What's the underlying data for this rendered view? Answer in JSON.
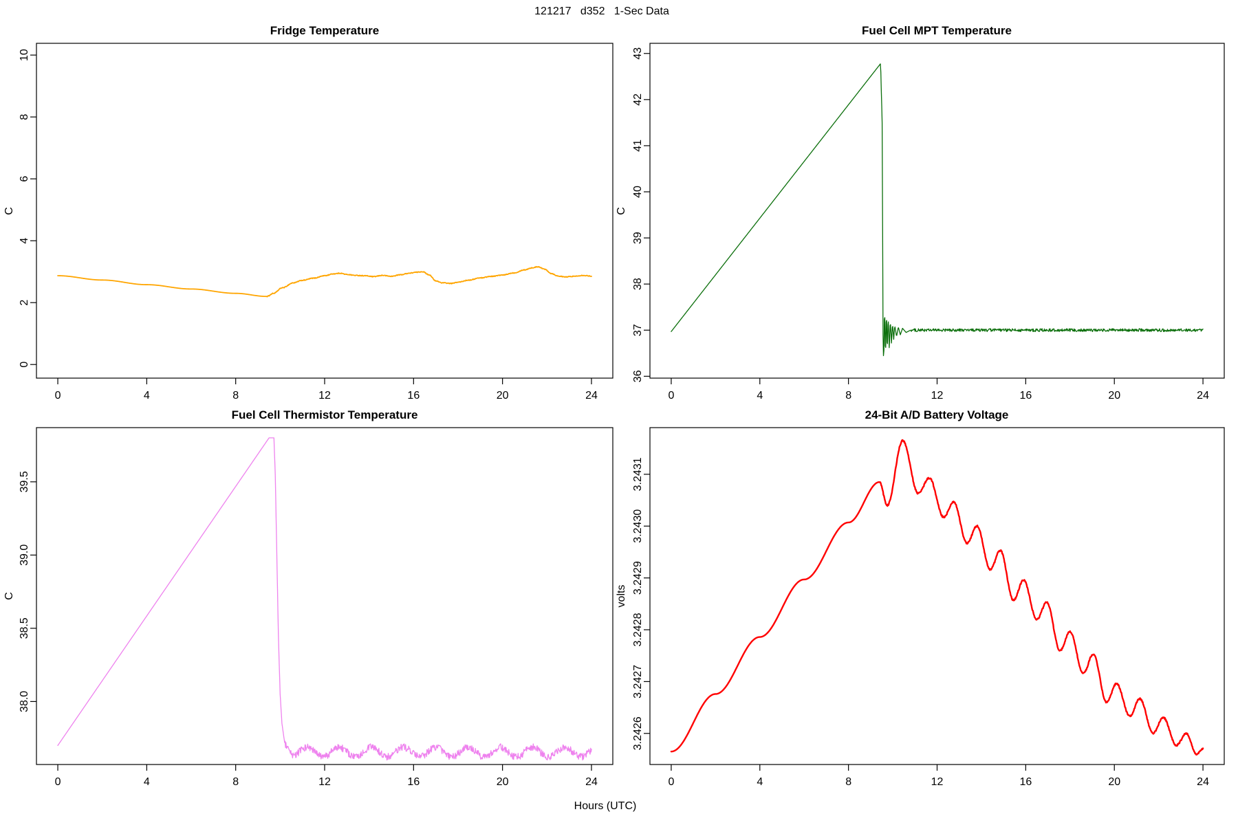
{
  "header": {
    "title": "121217   d352   1-Sec Data"
  },
  "xlabel": "Hours (UTC)",
  "colors": {
    "axis": "#000000",
    "background": "#ffffff"
  },
  "chart_data": [
    {
      "id": "fridge",
      "type": "line",
      "title": "Fridge Temperature",
      "ylabel": "C",
      "color": "#FFA500",
      "line_width": 1.8,
      "interp": "cosine",
      "sample_step": 0.02,
      "xlim": [
        -0.96,
        24.96
      ],
      "ylim": [
        -0.44,
        10.38
      ],
      "xtick_values": [
        0,
        4,
        8,
        12,
        16,
        20,
        24
      ],
      "xtick_labels": [
        "0",
        "4",
        "8",
        "12",
        "16",
        "20",
        "24"
      ],
      "ytick_values": [
        0,
        2,
        4,
        6,
        8,
        10
      ],
      "ytick_labels": [
        "0",
        "2",
        "4",
        "6",
        "8",
        "10"
      ],
      "anchors": [
        [
          0,
          2.87
        ],
        [
          2,
          2.73
        ],
        [
          4,
          2.58
        ],
        [
          6,
          2.44
        ],
        [
          8,
          2.3
        ],
        [
          9.4,
          2.2
        ],
        [
          9.7,
          2.3
        ],
        [
          10.1,
          2.48
        ],
        [
          10.6,
          2.64
        ],
        [
          11,
          2.72
        ],
        [
          11.5,
          2.79
        ],
        [
          12,
          2.87
        ],
        [
          12.4,
          2.93
        ],
        [
          12.7,
          2.95
        ],
        [
          13,
          2.91
        ],
        [
          13.4,
          2.88
        ],
        [
          13.8,
          2.87
        ],
        [
          14.2,
          2.84
        ],
        [
          14.6,
          2.88
        ],
        [
          15,
          2.85
        ],
        [
          15.4,
          2.9
        ],
        [
          15.8,
          2.95
        ],
        [
          16.1,
          2.98
        ],
        [
          16.4,
          3.0
        ],
        [
          16.7,
          2.9
        ],
        [
          17,
          2.7
        ],
        [
          17.3,
          2.64
        ],
        [
          17.7,
          2.62
        ],
        [
          18,
          2.66
        ],
        [
          18.5,
          2.73
        ],
        [
          19,
          2.8
        ],
        [
          19.5,
          2.85
        ],
        [
          20,
          2.89
        ],
        [
          20.5,
          2.96
        ],
        [
          21,
          3.06
        ],
        [
          21.3,
          3.12
        ],
        [
          21.6,
          3.16
        ],
        [
          21.9,
          3.08
        ],
        [
          22.2,
          2.94
        ],
        [
          22.5,
          2.86
        ],
        [
          22.8,
          2.83
        ],
        [
          23.2,
          2.85
        ],
        [
          23.6,
          2.88
        ],
        [
          24,
          2.86
        ]
      ],
      "noise": {
        "from": 9.4,
        "to": 24,
        "amp": 0.012
      }
    },
    {
      "id": "mpt",
      "type": "line",
      "title": "Fuel Cell MPT Temperature",
      "ylabel": "C",
      "color": "#0A6E0A",
      "line_width": 1.3,
      "interp": "linear",
      "sample_step": 0.02,
      "xlim": [
        -0.96,
        24.96
      ],
      "ylim": [
        35.96,
        43.22
      ],
      "xtick_values": [
        0,
        4,
        8,
        12,
        16,
        20,
        24
      ],
      "xtick_labels": [
        "0",
        "4",
        "8",
        "12",
        "16",
        "20",
        "24"
      ],
      "ytick_values": [
        36,
        37,
        38,
        39,
        40,
        41,
        42,
        43
      ],
      "ytick_labels": [
        "36",
        "37",
        "38",
        "39",
        "40",
        "41",
        "42",
        "43"
      ],
      "anchors": [
        [
          0,
          36.97
        ],
        [
          9.45,
          42.78
        ],
        [
          9.52,
          41.5
        ],
        [
          9.56,
          36.9
        ],
        [
          9.59,
          36.22
        ],
        [
          9.63,
          37.58
        ],
        [
          9.67,
          36.35
        ],
        [
          9.71,
          37.45
        ],
        [
          9.75,
          36.5
        ],
        [
          9.79,
          37.32
        ],
        [
          9.84,
          36.62
        ],
        [
          9.89,
          37.22
        ],
        [
          9.94,
          36.72
        ],
        [
          9.99,
          37.15
        ],
        [
          10.04,
          36.8
        ],
        [
          10.09,
          37.1
        ],
        [
          10.17,
          36.86
        ],
        [
          10.25,
          37.07
        ],
        [
          10.34,
          36.9
        ],
        [
          10.44,
          37.04
        ],
        [
          10.6,
          36.95
        ],
        [
          10.8,
          37.0
        ]
      ],
      "noise": {
        "from": 10.8,
        "to": 24,
        "amp": 0.032
      }
    },
    {
      "id": "thermistor",
      "type": "line",
      "title": "Fuel Cell Thermistor Temperature",
      "ylabel": "C",
      "color": "#EE82EE",
      "line_width": 1.3,
      "interp": "linear",
      "sample_step": 0.02,
      "xlim": [
        -0.96,
        24.96
      ],
      "ylim": [
        37.57,
        39.87
      ],
      "xtick_values": [
        0,
        4,
        8,
        12,
        16,
        20,
        24
      ],
      "xtick_labels": [
        "0",
        "4",
        "8",
        "12",
        "16",
        "20",
        "24"
      ],
      "ytick_values": [
        38.0,
        38.5,
        39.0,
        39.5
      ],
      "ytick_labels": [
        "38.0",
        "38.5",
        "39.0",
        "39.5"
      ],
      "anchors": [
        [
          0,
          37.7
        ],
        [
          9.5,
          39.8
        ],
        [
          9.72,
          39.8
        ],
        [
          9.78,
          39.55
        ],
        [
          9.85,
          39.0
        ],
        [
          9.92,
          38.45
        ],
        [
          10.0,
          38.05
        ],
        [
          10.08,
          37.85
        ],
        [
          10.2,
          37.72
        ],
        [
          10.35,
          37.67
        ],
        [
          10.5,
          37.64
        ]
      ],
      "wave": {
        "from": 10.5,
        "to": 24,
        "center": 37.655,
        "amplitude": 0.033,
        "period": 1.45,
        "crest_x": 11.2
      },
      "noise": {
        "from": 10.2,
        "to": 24,
        "amp": 0.024
      }
    },
    {
      "id": "battery",
      "type": "line",
      "title": "24-Bit A/D Battery Voltage",
      "ylabel": "volts",
      "color": "#FF0000",
      "line_width": 2.4,
      "interp": "cosine",
      "sample_step": 0.02,
      "xlim": [
        -0.96,
        24.96
      ],
      "ylim": [
        3.24254,
        3.24319
      ],
      "xtick_values": [
        0,
        4,
        8,
        12,
        16,
        20,
        24
      ],
      "xtick_labels": [
        "0",
        "4",
        "8",
        "12",
        "16",
        "20",
        "24"
      ],
      "ytick_values": [
        3.2426,
        3.2427,
        3.2428,
        3.2429,
        3.243,
        3.2431
      ],
      "ytick_labels": [
        "3.2426",
        "3.2427",
        "3.2428",
        "3.2429",
        "3.2430",
        "3.2431"
      ],
      "anchors": [
        [
          0,
          3.242565
        ],
        [
          2,
          3.242676
        ],
        [
          4,
          3.242786
        ],
        [
          6,
          3.242897
        ],
        [
          8,
          3.243007
        ],
        [
          9.4,
          3.243085
        ],
        [
          9.75,
          3.24304
        ],
        [
          10.45,
          3.243165
        ],
        [
          11.15,
          3.243063
        ],
        [
          11.65,
          3.243093
        ],
        [
          12.3,
          3.243017
        ],
        [
          12.75,
          3.243047
        ],
        [
          13.35,
          3.242967
        ],
        [
          13.8,
          3.243
        ],
        [
          14.4,
          3.242916
        ],
        [
          14.85,
          3.242953
        ],
        [
          15.45,
          3.242857
        ],
        [
          15.9,
          3.242896
        ],
        [
          16.5,
          3.24282
        ],
        [
          16.95,
          3.242853
        ],
        [
          17.55,
          3.24276
        ],
        [
          18.0,
          3.242796
        ],
        [
          18.6,
          3.242716
        ],
        [
          19.05,
          3.242753
        ],
        [
          19.65,
          3.24266
        ],
        [
          20.1,
          3.242696
        ],
        [
          20.7,
          3.242633
        ],
        [
          21.15,
          3.242667
        ],
        [
          21.75,
          3.2426
        ],
        [
          22.2,
          3.242631
        ],
        [
          22.8,
          3.242577
        ],
        [
          23.25,
          3.2426
        ],
        [
          23.7,
          3.24256
        ],
        [
          24,
          3.24257
        ]
      ],
      "noise": {
        "from": 9.4,
        "to": 24,
        "amp": 1.5e-06
      }
    }
  ]
}
